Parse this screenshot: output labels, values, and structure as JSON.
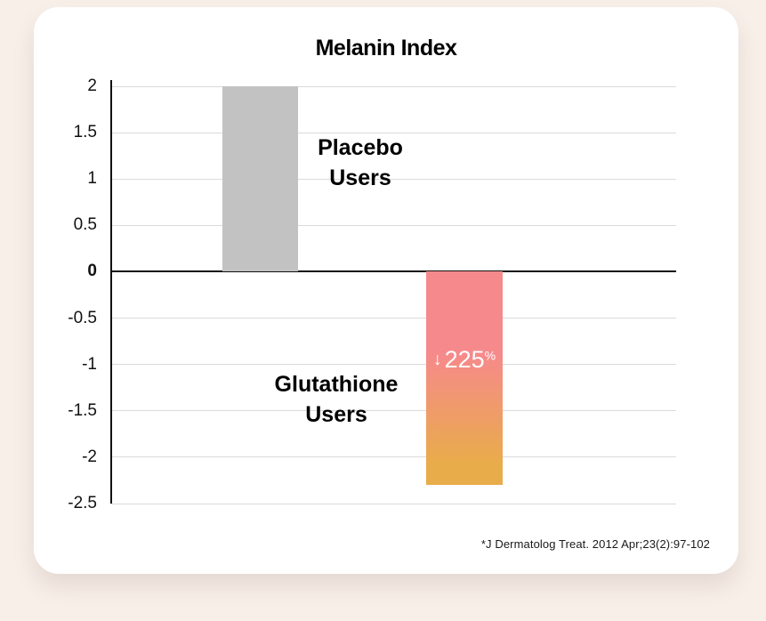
{
  "page": {
    "background_color": "#F8EFE9",
    "card_background_color": "#FFFFFF"
  },
  "chart_data": {
    "type": "bar",
    "title": "Melanin Index",
    "categories": [
      "Placebo Users",
      "Glutathione Users"
    ],
    "values": [
      2,
      -2.3
    ],
    "ylim": [
      -2.5,
      2
    ],
    "yticks": [
      2,
      1.5,
      1,
      0.5,
      0,
      -0.5,
      -1,
      -1.5,
      -2,
      -2.5
    ],
    "grid": true,
    "legend": "none",
    "bars": [
      {
        "name": "Placebo Users",
        "value": 2,
        "color": "#C2C2C2",
        "label_lines": [
          "Placebo",
          "Users"
        ]
      },
      {
        "name": "Glutathione Users",
        "value": -2.3,
        "color_top": "#F6898C",
        "color_bottom": "#E9AC4B",
        "label_lines": [
          "Glutathione",
          "Users"
        ],
        "annotation": {
          "arrow": "↓",
          "value": "225",
          "unit": "%"
        }
      }
    ],
    "zero_line_color": "#111111",
    "gridline_color": "#DBDBDB",
    "source": "*J Dermatolog Treat. 2012 Apr;23(2):97-102"
  }
}
